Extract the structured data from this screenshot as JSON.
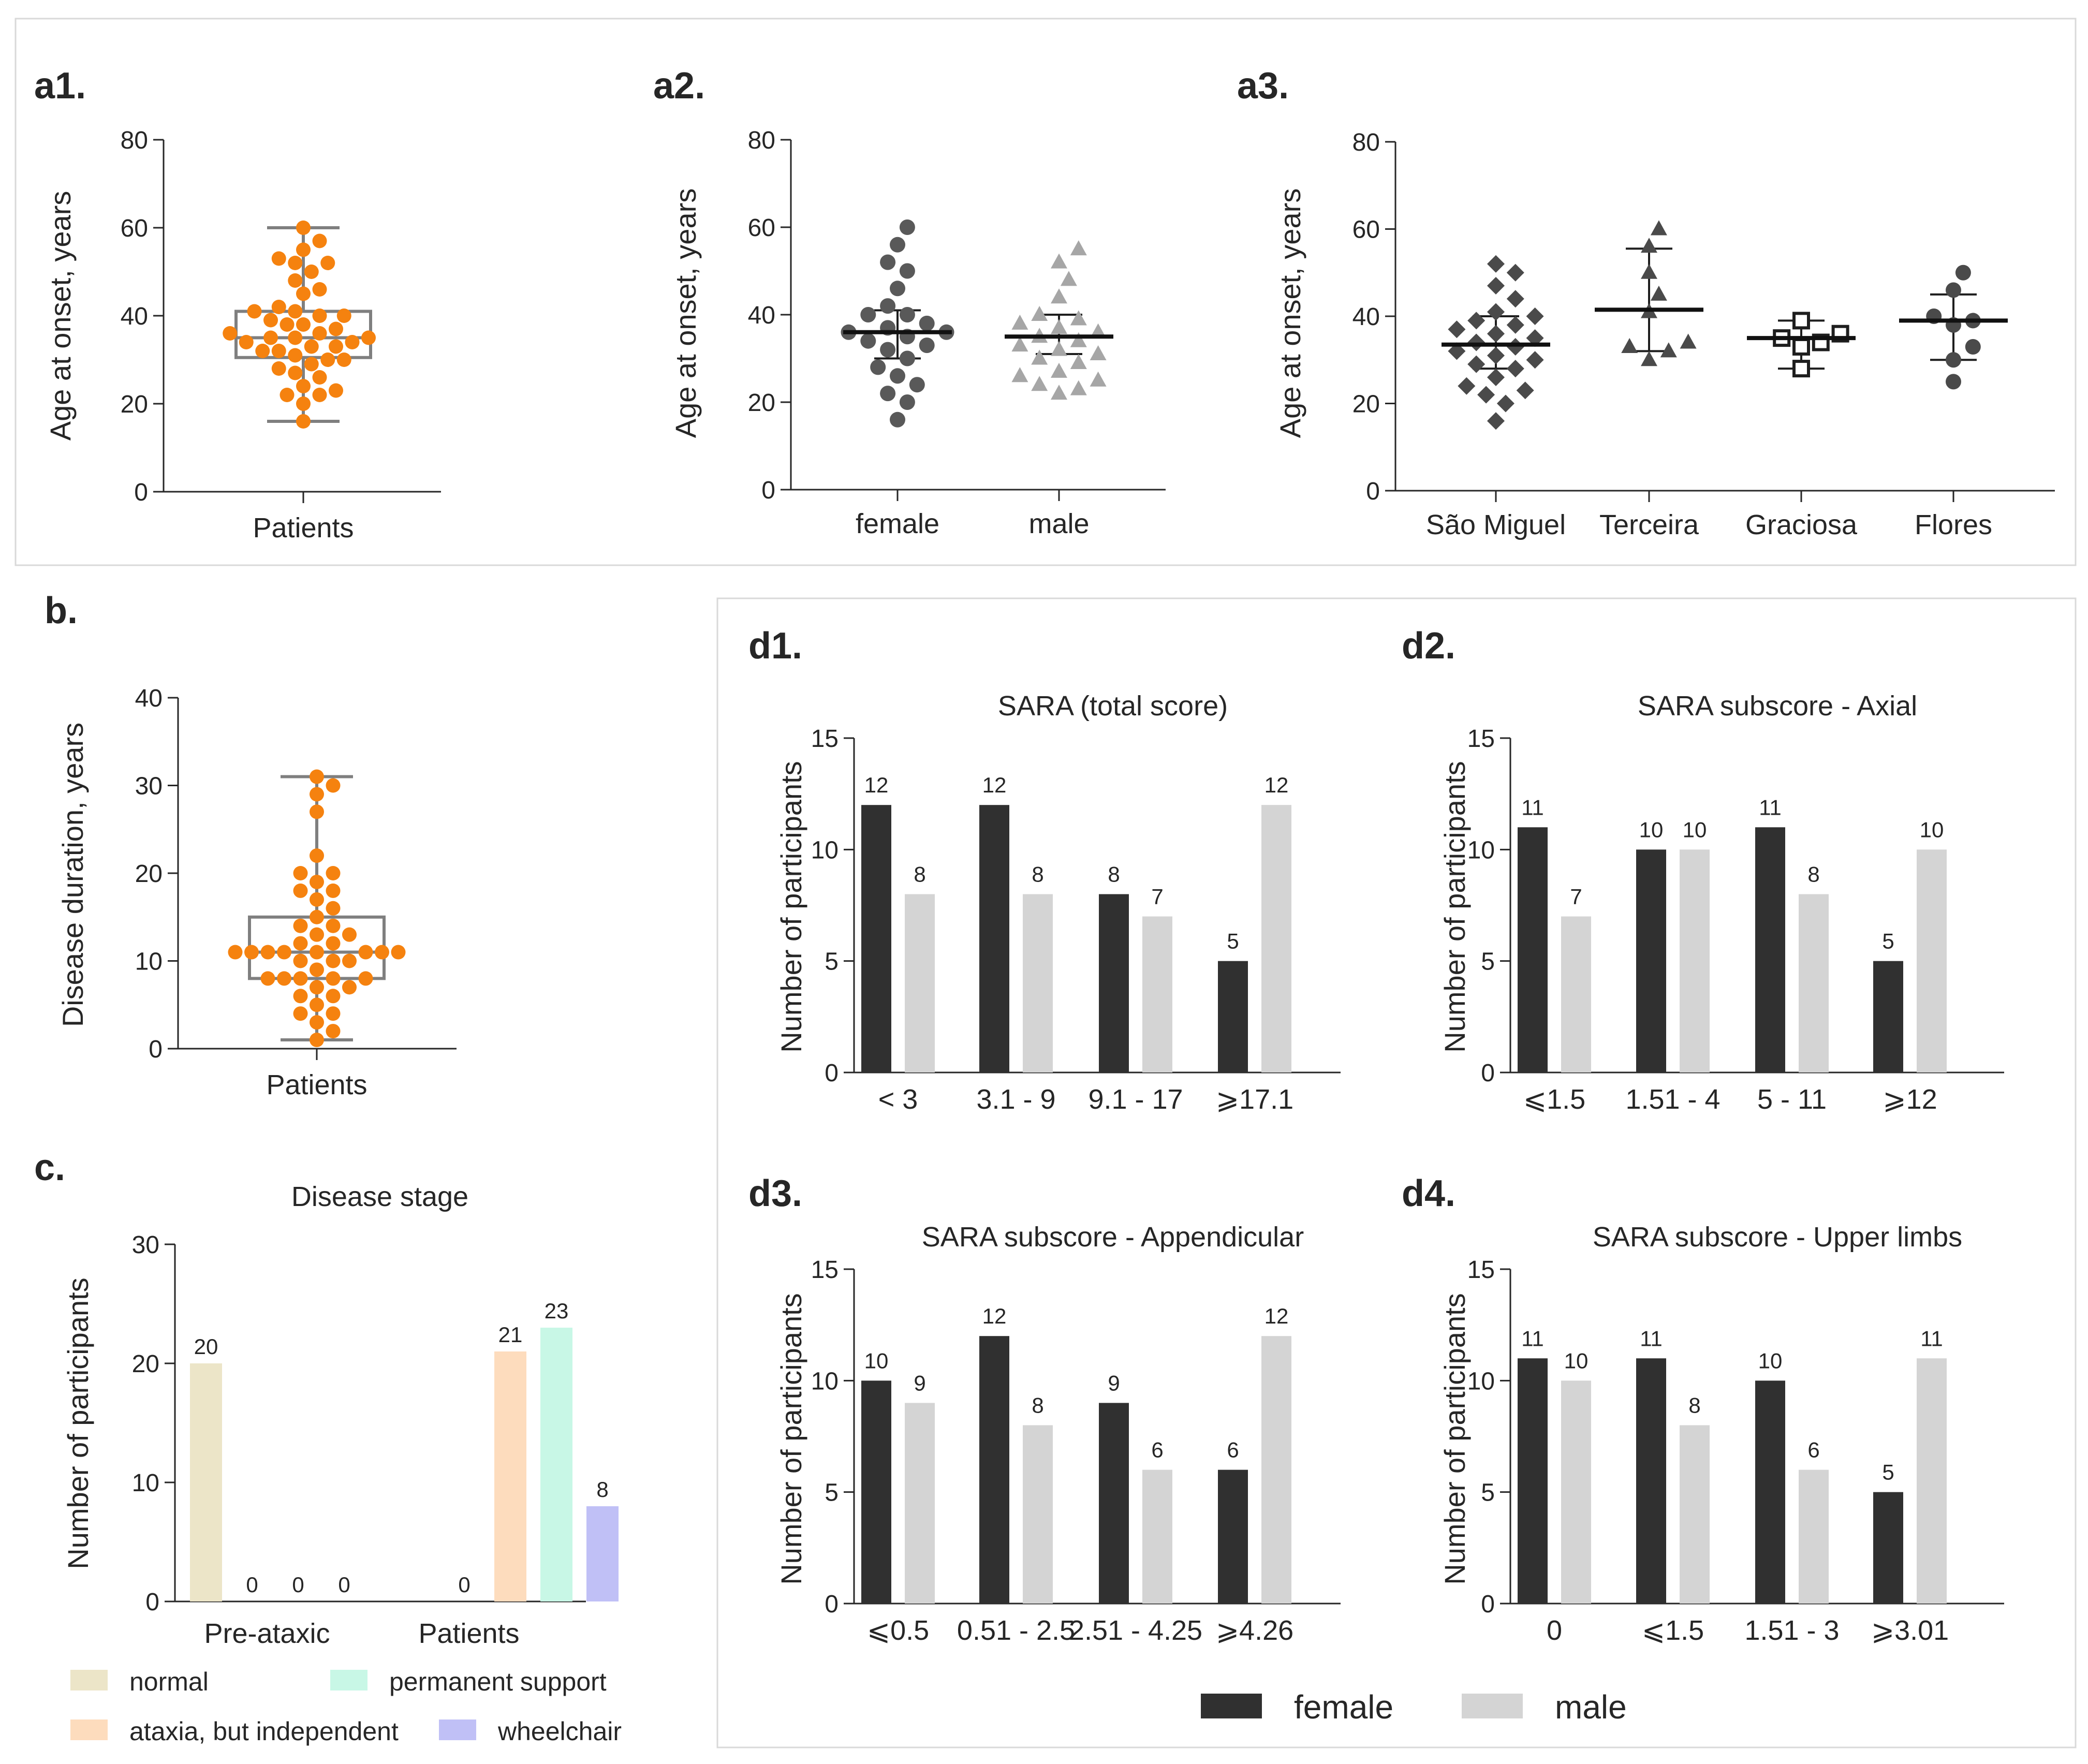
{
  "colors": {
    "orange": "#f5820f",
    "box": "#7f7f7f",
    "dark": "#595959",
    "light": "#a6a6a6",
    "female": "#303030",
    "male": "#d4d4d4",
    "normal": "#ece5c8",
    "ataxia": "#fddcbd",
    "support": "#c8f7e6",
    "wheelchair": "#c0c0f6"
  },
  "panels": {
    "a1": "a1.",
    "a2": "a2.",
    "a3": "a3.",
    "b": "b.",
    "c": "c.",
    "d1": "d1.",
    "d2": "d2.",
    "d3": "d3.",
    "d4": "d4."
  },
  "chart_data": [
    {
      "id": "a1",
      "type": "scatter",
      "title": "",
      "ylabel": "Age at onset, years",
      "ylim": [
        0,
        80
      ],
      "yticks": [
        0,
        20,
        40,
        60,
        80
      ],
      "categories": [
        "Patients"
      ],
      "box": {
        "min": 16,
        "q1": 30.5,
        "median": 35,
        "q3": 41,
        "max": 60
      },
      "points": [
        60,
        57,
        55,
        53,
        52,
        52,
        50,
        48,
        46,
        45,
        42,
        41,
        41,
        40,
        40,
        39,
        38,
        38,
        37,
        36,
        36,
        35,
        35,
        35,
        34,
        34,
        33,
        33,
        32,
        32,
        31,
        30,
        30,
        29,
        28,
        27,
        26,
        24,
        23,
        22,
        22,
        20,
        16
      ]
    },
    {
      "id": "a2",
      "type": "scatter",
      "title": "",
      "ylabel": "Age at onset, years",
      "ylim": [
        0,
        80
      ],
      "yticks": [
        0,
        20,
        40,
        60,
        80
      ],
      "categories": [
        "female",
        "male"
      ],
      "groups": [
        {
          "name": "female",
          "mean": 36,
          "sd_low": 30,
          "sd_high": 41,
          "points": [
            60,
            56,
            52,
            50,
            46,
            42,
            40,
            40,
            38,
            37,
            36,
            36,
            35,
            34,
            33,
            32,
            30,
            28,
            26,
            24,
            22,
            20,
            16
          ]
        },
        {
          "name": "male",
          "mean": 35,
          "sd_low": 31,
          "sd_high": 40,
          "points": [
            55,
            52,
            48,
            44,
            40,
            39,
            38,
            37,
            36,
            35,
            34,
            33,
            32,
            31,
            30,
            29,
            27,
            26,
            25,
            24,
            23,
            22
          ]
        }
      ]
    },
    {
      "id": "a3",
      "type": "scatter",
      "title": "",
      "ylabel": "Age at onset, years",
      "ylim": [
        0,
        80
      ],
      "yticks": [
        0,
        20,
        40,
        60,
        80
      ],
      "categories": [
        "São Miguel",
        "Terceira",
        "Graciosa",
        "Flores"
      ],
      "groups": [
        {
          "name": "São Miguel",
          "marker": "diamond",
          "mean": 33.5,
          "sd_low": 28,
          "sd_high": 40,
          "points": [
            52,
            50,
            47,
            44,
            41,
            40,
            39,
            38,
            37,
            36,
            35,
            34,
            33,
            32,
            31,
            30,
            29,
            28,
            26,
            24,
            23,
            22,
            20,
            16
          ]
        },
        {
          "name": "Terceira",
          "marker": "triangle",
          "mean": 41.5,
          "sd_low": 32,
          "sd_high": 55.5,
          "points": [
            60,
            56,
            50,
            45,
            41,
            34,
            33,
            32,
            30
          ]
        },
        {
          "name": "Graciosa",
          "marker": "square",
          "mean": 35,
          "sd_low": 28,
          "sd_high": 39,
          "points": [
            39,
            36,
            35,
            34,
            33,
            28
          ]
        },
        {
          "name": "Flores",
          "marker": "circle",
          "mean": 39,
          "sd_low": 30,
          "sd_high": 45,
          "points": [
            50,
            46,
            40,
            39,
            38,
            33,
            30,
            25
          ]
        }
      ]
    },
    {
      "id": "b",
      "type": "scatter",
      "title": "",
      "ylabel": "Disease duration, years",
      "ylim": [
        0,
        40
      ],
      "yticks": [
        0,
        10,
        20,
        30,
        40
      ],
      "categories": [
        "Patients"
      ],
      "box": {
        "min": 1,
        "q1": 8,
        "median": 11,
        "q3": 15,
        "max": 31
      },
      "points": [
        31,
        30,
        29,
        27,
        22,
        20,
        20,
        19,
        18,
        18,
        17,
        16,
        15,
        14,
        14,
        13,
        13,
        12,
        12,
        11,
        11,
        11,
        11,
        11,
        11,
        11,
        11,
        10,
        10,
        10,
        9,
        8,
        8,
        8,
        8,
        8,
        7,
        7,
        6,
        6,
        5,
        4,
        4,
        3,
        2,
        1
      ]
    },
    {
      "id": "c",
      "type": "bar",
      "title": "Disease stage",
      "ylabel": "Number of participants",
      "ylim": [
        0,
        30
      ],
      "yticks": [
        0,
        10,
        20,
        30
      ],
      "categories": [
        "Pre-ataxic",
        "Patients"
      ],
      "series": [
        {
          "name": "normal",
          "color": "#ece5c8",
          "values": [
            20,
            0
          ]
        },
        {
          "name": "ataxia, but independent",
          "color": "#fddcbd",
          "values": [
            0,
            21
          ]
        },
        {
          "name": "permanent support",
          "color": "#c8f7e6",
          "values": [
            0,
            23
          ]
        },
        {
          "name": "wheelchair",
          "color": "#c0c0f6",
          "values": [
            0,
            8
          ]
        }
      ]
    },
    {
      "id": "d1",
      "type": "bar",
      "title": "SARA (total score)",
      "ylabel": "Number of participants",
      "ylim": [
        0,
        15
      ],
      "yticks": [
        0,
        5,
        10,
        15
      ],
      "categories": [
        "< 3",
        "3.1 - 9",
        "9.1 - 17",
        "⩾17.1"
      ],
      "series": [
        {
          "name": "female",
          "values": [
            12,
            12,
            8,
            5
          ]
        },
        {
          "name": "male",
          "values": [
            8,
            8,
            7,
            12
          ]
        }
      ]
    },
    {
      "id": "d2",
      "type": "bar",
      "title": "SARA subscore - Axial",
      "ylabel": "Number of participants",
      "ylim": [
        0,
        15
      ],
      "yticks": [
        0,
        5,
        10,
        15
      ],
      "categories": [
        "⩽1.5",
        "1.51 - 4",
        "5 - 11",
        "⩾12"
      ],
      "series": [
        {
          "name": "female",
          "values": [
            11,
            10,
            11,
            5
          ]
        },
        {
          "name": "male",
          "values": [
            7,
            10,
            8,
            10
          ]
        }
      ]
    },
    {
      "id": "d3",
      "type": "bar",
      "title": "SARA subscore - Appendicular",
      "ylabel": "Number of participants",
      "ylim": [
        0,
        15
      ],
      "yticks": [
        0,
        5,
        10,
        15
      ],
      "categories": [
        "⩽0.5",
        "0.51 - 2.5",
        "2.51 - 4.25",
        "⩾4.26"
      ],
      "series": [
        {
          "name": "female",
          "values": [
            10,
            12,
            9,
            6
          ]
        },
        {
          "name": "male",
          "values": [
            9,
            8,
            6,
            12
          ]
        }
      ]
    },
    {
      "id": "d4",
      "type": "bar",
      "title": "SARA subscore - Upper limbs",
      "ylabel": "Number of participants",
      "ylim": [
        0,
        15
      ],
      "yticks": [
        0,
        5,
        10,
        15
      ],
      "categories": [
        "0",
        "⩽1.5",
        "1.51 - 3",
        "⩾3.01"
      ],
      "series": [
        {
          "name": "female",
          "values": [
            11,
            11,
            10,
            5
          ]
        },
        {
          "name": "male",
          "values": [
            10,
            8,
            6,
            11
          ]
        }
      ]
    }
  ],
  "legend_c": [
    {
      "label": "normal",
      "color": "#ece5c8"
    },
    {
      "label": "permanent support",
      "color": "#c8f7e6"
    },
    {
      "label": "ataxia, but independent",
      "color": "#fddcbd"
    },
    {
      "label": "wheelchair",
      "color": "#c0c0f6"
    }
  ],
  "legend_d": [
    {
      "label": "female",
      "color": "#303030"
    },
    {
      "label": "male",
      "color": "#d4d4d4"
    }
  ]
}
